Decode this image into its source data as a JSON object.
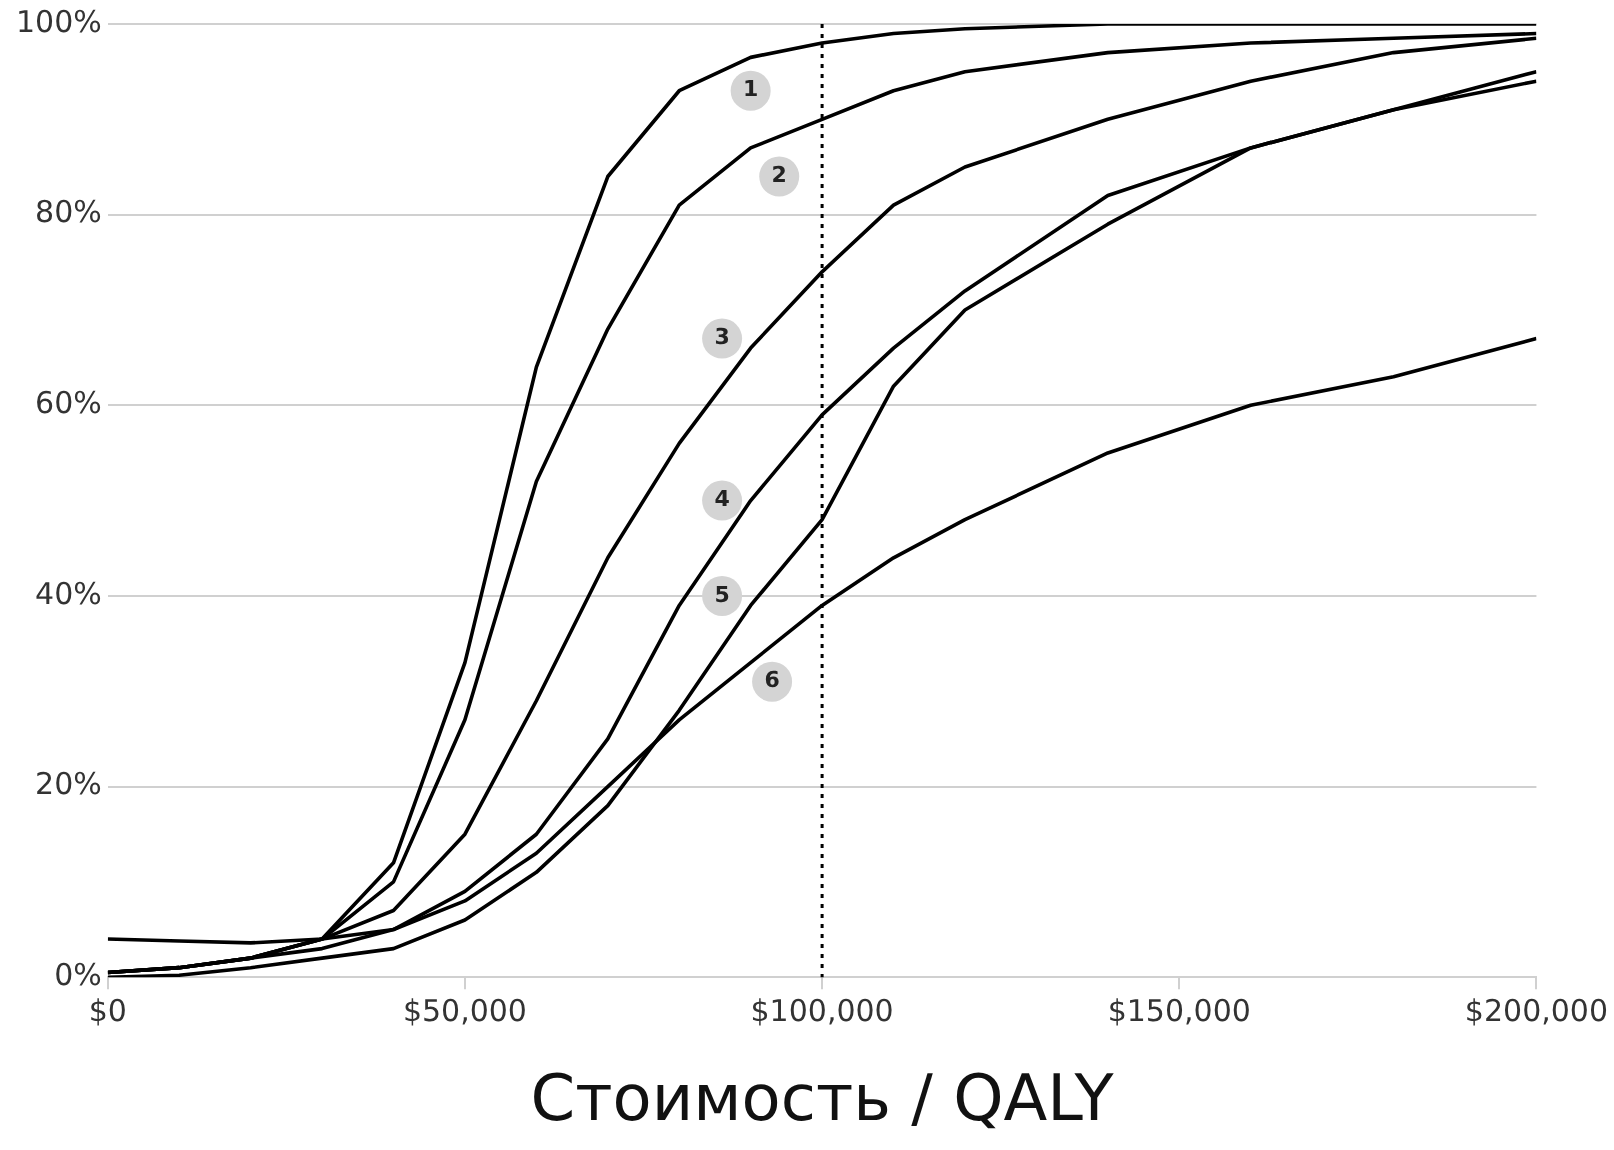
{
  "chart_data": {
    "type": "line",
    "xlabel": "Стоимость / QALY",
    "x": [
      0,
      10000,
      20000,
      30000,
      40000,
      50000,
      60000,
      70000,
      80000,
      90000,
      100000,
      110000,
      120000,
      140000,
      160000,
      180000,
      200000
    ],
    "series": [
      {
        "color": "#000000",
        "values": [
          0.5,
          1,
          2,
          4,
          12,
          33,
          64,
          84,
          93,
          96.5,
          98,
          99,
          99.5,
          100,
          100,
          100,
          100
        ]
      },
      {
        "color": "#000000",
        "values": [
          0.5,
          1,
          2,
          4,
          10,
          27,
          52,
          68,
          81,
          87,
          90,
          93,
          95,
          97,
          98,
          98.5,
          99
        ]
      },
      {
        "color": "#000000",
        "values": [
          0.5,
          1,
          2,
          4,
          7,
          15,
          29,
          44,
          56,
          66,
          74,
          81,
          85,
          90,
          94,
          97,
          98.5
        ]
      },
      {
        "color": "#000000",
        "values": [
          0.5,
          1,
          2,
          3,
          5,
          9,
          15,
          25,
          39,
          50,
          59,
          66,
          72,
          82,
          87,
          91,
          95
        ]
      },
      {
        "color": "#000000",
        "values": [
          0,
          0.2,
          1,
          2,
          3,
          6,
          11,
          18,
          28,
          39,
          48,
          62,
          70,
          79,
          87,
          91,
          94
        ]
      },
      {
        "color": "#000000",
        "values": [
          4,
          3.8,
          3.6,
          4,
          5,
          8,
          13,
          20,
          27,
          33,
          39,
          44,
          48,
          55,
          60,
          63,
          67
        ]
      }
    ],
    "xlim": [
      0,
      200000
    ],
    "xticks": [
      {
        "value": 0,
        "label": "$0"
      },
      {
        "value": 50000,
        "label": "$50,000"
      },
      {
        "value": 100000,
        "label": "$100,000"
      },
      {
        "value": 150000,
        "label": "$150,000"
      },
      {
        "value": 200000,
        "label": "$200,000"
      }
    ],
    "ylim": [
      0,
      100
    ],
    "yticks": [
      {
        "value": 0,
        "label": "0%"
      },
      {
        "value": 20,
        "label": "20%"
      },
      {
        "value": 40,
        "label": "40%"
      },
      {
        "value": 60,
        "label": "60%"
      },
      {
        "value": 80,
        "label": "80%"
      },
      {
        "value": 100,
        "label": "100%"
      }
    ],
    "grid": "y",
    "legend": false,
    "marker": "none",
    "line_style": "solid",
    "ref_lines": [
      {
        "axis": "x",
        "value": 100000,
        "line_style": "dotted",
        "color": "#000000"
      }
    ],
    "annotations": [
      {
        "text": "1",
        "x": 90000,
        "y": 93
      },
      {
        "text": "2",
        "x": 94000,
        "y": 84
      },
      {
        "text": "3",
        "x": 86000,
        "y": 67
      },
      {
        "text": "4",
        "x": 86000,
        "y": 50
      },
      {
        "text": "5",
        "x": 86000,
        "y": 40
      },
      {
        "text": "6",
        "x": 93000,
        "y": 31
      }
    ]
  }
}
